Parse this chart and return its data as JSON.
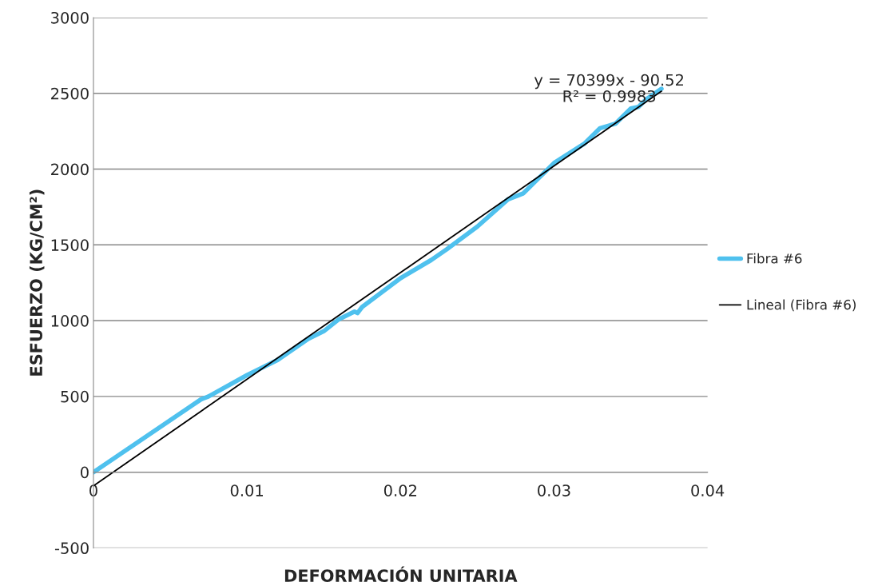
{
  "chart_data": {
    "type": "line",
    "xlabel": "DEFORMACIÓN UNITARIA",
    "ylabel": "ESFUERZO (KG/CM²)",
    "series": [
      {
        "name": "Fibra #6",
        "color": "#4fc1ee",
        "x": [
          0,
          0.007,
          0.0075,
          0.01,
          0.012,
          0.014,
          0.015,
          0.016,
          0.017,
          0.0172,
          0.0175,
          0.02,
          0.022,
          0.023,
          0.025,
          0.027,
          0.028,
          0.029,
          0.03,
          0.032,
          0.033,
          0.034,
          0.035,
          0.0355,
          0.036,
          0.037
        ],
        "values": [
          0,
          480,
          500,
          640,
          740,
          880,
          930,
          1010,
          1060,
          1050,
          1090,
          1280,
          1400,
          1470,
          1620,
          1800,
          1840,
          1940,
          2040,
          2170,
          2270,
          2300,
          2400,
          2410,
          2460,
          2530
        ]
      },
      {
        "name": "Lineal (Fibra #6)",
        "color": "#000000",
        "x": [
          0,
          0.037
        ],
        "values": [
          -91,
          2514
        ]
      }
    ],
    "annotations": [
      "y = 70399x - 90.52\nR² = 0.9983"
    ],
    "xlim": [
      0,
      0.04
    ],
    "xticks": [
      0,
      0.01,
      0.02,
      0.03,
      0.04
    ],
    "ylim": [
      -500,
      3000
    ],
    "yticks": [
      -500,
      0,
      500,
      1000,
      1500,
      2000,
      2500,
      3000
    ],
    "grid": "y",
    "legend": "right",
    "marker": "none",
    "line_style": "solid"
  }
}
